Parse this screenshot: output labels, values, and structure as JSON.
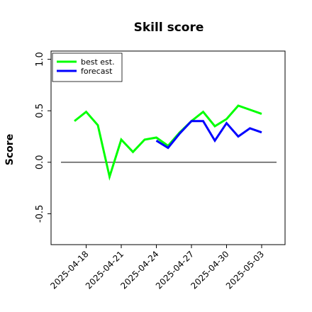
{
  "chart_data": {
    "type": "line",
    "title": "Skill score",
    "y_label": "Score",
    "x": [
      "2025-04-17",
      "2025-04-18",
      "2025-04-19",
      "2025-04-20",
      "2025-04-21",
      "2025-04-22",
      "2025-04-23",
      "2025-04-24",
      "2025-04-25",
      "2025-04-26",
      "2025-04-27",
      "2025-04-28",
      "2025-04-29",
      "2025-04-30",
      "2025-05-01",
      "2025-05-02",
      "2025-05-03"
    ],
    "series": [
      {
        "name": "best est.",
        "color": "#00ff00",
        "values": [
          0.4,
          0.49,
          0.36,
          -0.14,
          0.22,
          0.1,
          0.22,
          0.24,
          0.16,
          0.29,
          0.4,
          0.49,
          0.35,
          0.42,
          0.55,
          0.51,
          0.47
        ]
      },
      {
        "name": "forecast",
        "color": "#0000ff",
        "values": [
          null,
          null,
          null,
          null,
          null,
          null,
          null,
          0.21,
          0.14,
          0.28,
          0.4,
          0.4,
          0.21,
          0.38,
          0.25,
          0.33,
          0.29
        ]
      }
    ],
    "xlim": [
      "2025-04-15",
      "2025-05-05"
    ],
    "xticks": [
      "2025-04-18",
      "2025-04-21",
      "2025-04-24",
      "2025-04-27",
      "2025-04-30",
      "2025-05-03"
    ],
    "highlight_xtick": "2025-04-24",
    "highlight_color": "#2a8a2a",
    "ylim": [
      -0.8,
      1.08
    ],
    "yticks": [
      {
        "value": -0.5,
        "label": "-0.5"
      },
      {
        "value": 0,
        "label": "0.0"
      },
      {
        "value": 0.5,
        "label": "0.5"
      },
      {
        "value": 1,
        "label": "1.0"
      }
    ],
    "hline": 0,
    "legend": "upper left"
  }
}
